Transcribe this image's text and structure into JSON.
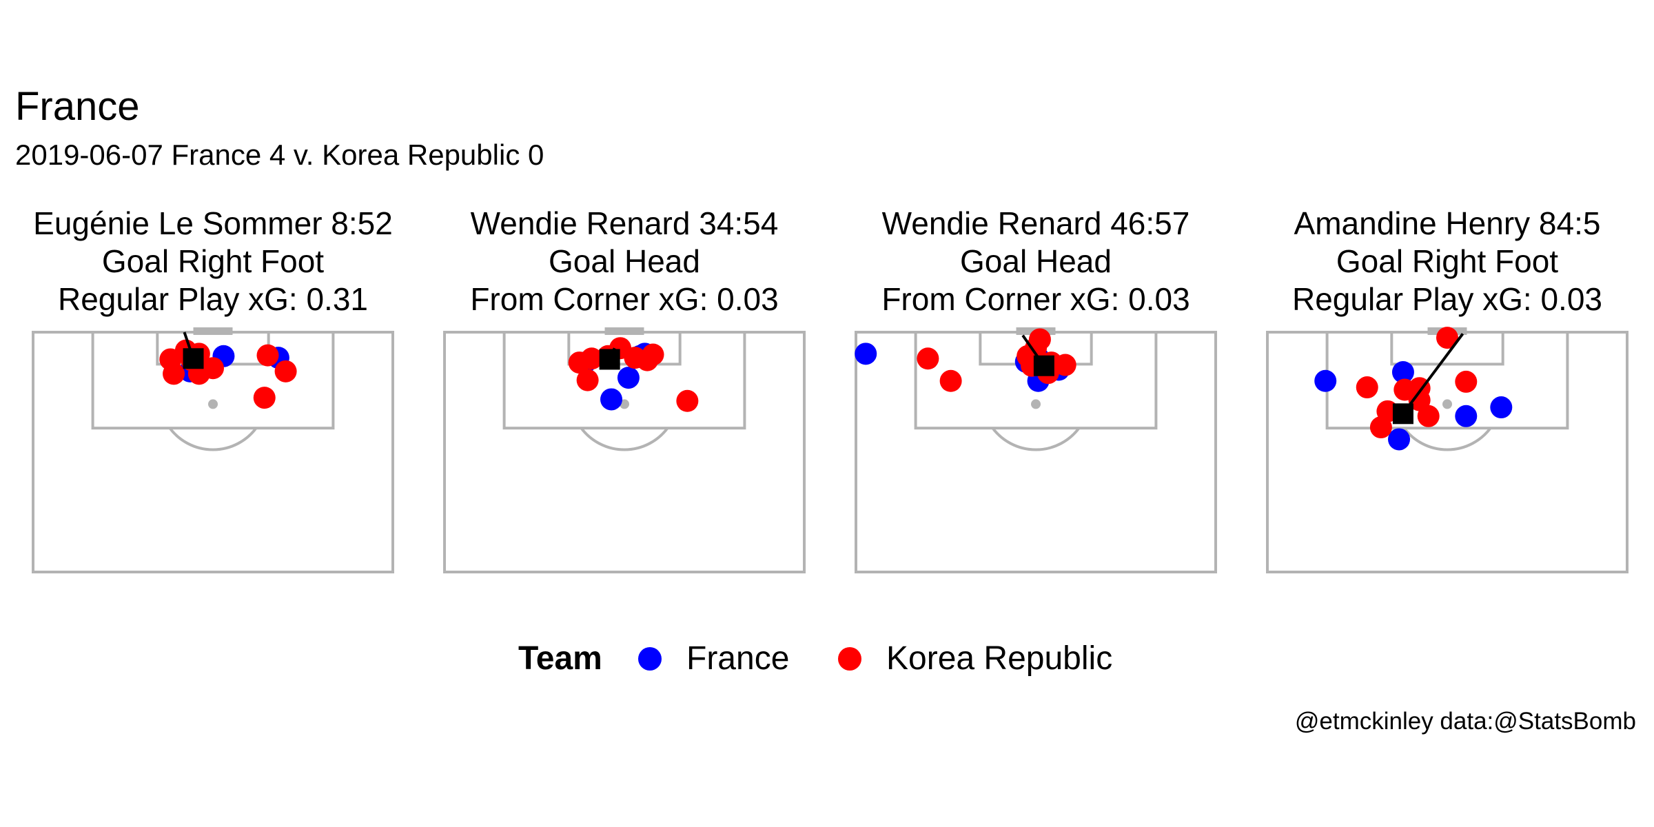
{
  "title": "France",
  "subtitle": "2019-06-07 France  4 v. Korea Republic  0",
  "caption": "@etmckinley data:@StatsBomb",
  "legend": {
    "title": "Team",
    "items": [
      {
        "name": "France",
        "color": "#0000ff"
      },
      {
        "name": "Korea Republic",
        "color": "#ff0000"
      }
    ]
  },
  "colors": {
    "France": "#0000ff",
    "Korea Republic": "#ff0000",
    "pitch_lines": "#b3b3b3",
    "shot": "#000000"
  },
  "chart_data": [
    {
      "type": "scatter",
      "title_lines": [
        "Eugénie Le Sommer 8:52",
        "Goal Right Foot",
        "Regular Play xG: 0.31"
      ],
      "x_range": [
        18,
        62
      ],
      "y_range": [
        120,
        90
      ],
      "shot": {
        "x": 37.6,
        "y": 116.7,
        "end_x": 36.5,
        "end_y": 120
      },
      "players": [
        {
          "team": "France",
          "x": 38.1,
          "y": 116.4
        },
        {
          "team": "France",
          "x": 41.3,
          "y": 117.0
        },
        {
          "team": "France",
          "x": 37.2,
          "y": 115.1
        },
        {
          "team": "France",
          "x": 48.0,
          "y": 116.8
        },
        {
          "team": "Korea Republic",
          "x": 36.7,
          "y": 117.7
        },
        {
          "team": "Korea Republic",
          "x": 38.3,
          "y": 117.3
        },
        {
          "team": "Korea Republic",
          "x": 37.4,
          "y": 116.5
        },
        {
          "team": "Korea Republic",
          "x": 34.8,
          "y": 116.6
        },
        {
          "team": "Korea Republic",
          "x": 35.2,
          "y": 114.8
        },
        {
          "team": "Korea Republic",
          "x": 38.3,
          "y": 114.8
        },
        {
          "team": "Korea Republic",
          "x": 40.0,
          "y": 115.5
        },
        {
          "team": "Korea Republic",
          "x": 46.7,
          "y": 117.1
        },
        {
          "team": "Korea Republic",
          "x": 46.3,
          "y": 111.8
        },
        {
          "team": "Korea Republic",
          "x": 48.9,
          "y": 115.1
        }
      ]
    },
    {
      "type": "scatter",
      "title_lines": [
        "Wendie Renard 34:54",
        "Goal Head",
        "From Corner xG: 0.03"
      ],
      "x_range": [
        18,
        62
      ],
      "y_range": [
        120,
        90
      ],
      "shot": {
        "x": 38.2,
        "y": 116.6,
        "end_x": 38.8,
        "end_y": 118.0
      },
      "players": [
        {
          "team": "France",
          "x": 35.2,
          "y": 116.2
        },
        {
          "team": "France",
          "x": 41.9,
          "y": 117.0
        },
        {
          "team": "France",
          "x": 42.5,
          "y": 117.3
        },
        {
          "team": "France",
          "x": 40.5,
          "y": 114.3
        },
        {
          "team": "France",
          "x": 38.4,
          "y": 111.6
        },
        {
          "team": "Korea Republic",
          "x": 34.5,
          "y": 116.2
        },
        {
          "team": "Korea Republic",
          "x": 36.0,
          "y": 116.7
        },
        {
          "team": "Korea Republic",
          "x": 38.0,
          "y": 117.0
        },
        {
          "team": "Korea Republic",
          "x": 39.5,
          "y": 118.0
        },
        {
          "team": "Korea Republic",
          "x": 41.3,
          "y": 116.8
        },
        {
          "team": "Korea Republic",
          "x": 42.8,
          "y": 116.5
        },
        {
          "team": "Korea Republic",
          "x": 43.5,
          "y": 117.2
        },
        {
          "team": "Korea Republic",
          "x": 35.5,
          "y": 114.0
        },
        {
          "team": "Korea Republic",
          "x": 47.7,
          "y": 111.4
        }
      ]
    },
    {
      "type": "scatter",
      "title_lines": [
        "Wendie Renard 46:57",
        "Goal Head",
        "From Corner xG: 0.03"
      ],
      "x_range": [
        18,
        62
      ],
      "y_range": [
        120,
        90
      ],
      "shot": {
        "x": 41.0,
        "y": 115.8,
        "end_x": 38.4,
        "end_y": 119.6
      },
      "players": [
        {
          "team": "France",
          "x": 19.2,
          "y": 117.3
        },
        {
          "team": "France",
          "x": 38.8,
          "y": 116.3
        },
        {
          "team": "France",
          "x": 40.3,
          "y": 116.8
        },
        {
          "team": "France",
          "x": 42.8,
          "y": 115.3
        },
        {
          "team": "France",
          "x": 40.3,
          "y": 113.9
        },
        {
          "team": "Korea Republic",
          "x": 26.8,
          "y": 116.7
        },
        {
          "team": "Korea Republic",
          "x": 29.6,
          "y": 113.9
        },
        {
          "team": "Korea Republic",
          "x": 39.0,
          "y": 117.0
        },
        {
          "team": "Korea Republic",
          "x": 40.0,
          "y": 118.0
        },
        {
          "team": "Korea Republic",
          "x": 40.5,
          "y": 119.1
        },
        {
          "team": "Korea Republic",
          "x": 39.5,
          "y": 115.8
        },
        {
          "team": "Korea Republic",
          "x": 41.9,
          "y": 116.2
        },
        {
          "team": "Korea Republic",
          "x": 43.6,
          "y": 115.9
        },
        {
          "team": "Korea Republic",
          "x": 41.5,
          "y": 114.9
        }
      ]
    },
    {
      "type": "scatter",
      "title_lines": [
        "Amandine Henry 84:5",
        "Goal Right Foot",
        "Regular Play xG: 0.03"
      ],
      "x_range": [
        18,
        62
      ],
      "y_range": [
        120,
        90
      ],
      "shot": {
        "x": 34.6,
        "y": 109.8,
        "end_x": 41.9,
        "end_y": 119.8
      },
      "players": [
        {
          "team": "France",
          "x": 25.1,
          "y": 113.9
        },
        {
          "team": "France",
          "x": 34.6,
          "y": 115.0
        },
        {
          "team": "France",
          "x": 34.1,
          "y": 106.6
        },
        {
          "team": "France",
          "x": 42.3,
          "y": 109.5
        },
        {
          "team": "France",
          "x": 46.6,
          "y": 110.6
        },
        {
          "team": "Korea Republic",
          "x": 30.2,
          "y": 113.1
        },
        {
          "team": "Korea Republic",
          "x": 32.7,
          "y": 110.1
        },
        {
          "team": "Korea Republic",
          "x": 34.8,
          "y": 112.8
        },
        {
          "team": "Korea Republic",
          "x": 36.6,
          "y": 113.0
        },
        {
          "team": "Korea Republic",
          "x": 36.6,
          "y": 111.5
        },
        {
          "team": "Korea Republic",
          "x": 37.7,
          "y": 109.5
        },
        {
          "team": "Korea Republic",
          "x": 31.9,
          "y": 108.1
        },
        {
          "team": "Korea Republic",
          "x": 40.0,
          "y": 119.3
        },
        {
          "team": "Korea Republic",
          "x": 42.3,
          "y": 113.8
        }
      ]
    }
  ]
}
